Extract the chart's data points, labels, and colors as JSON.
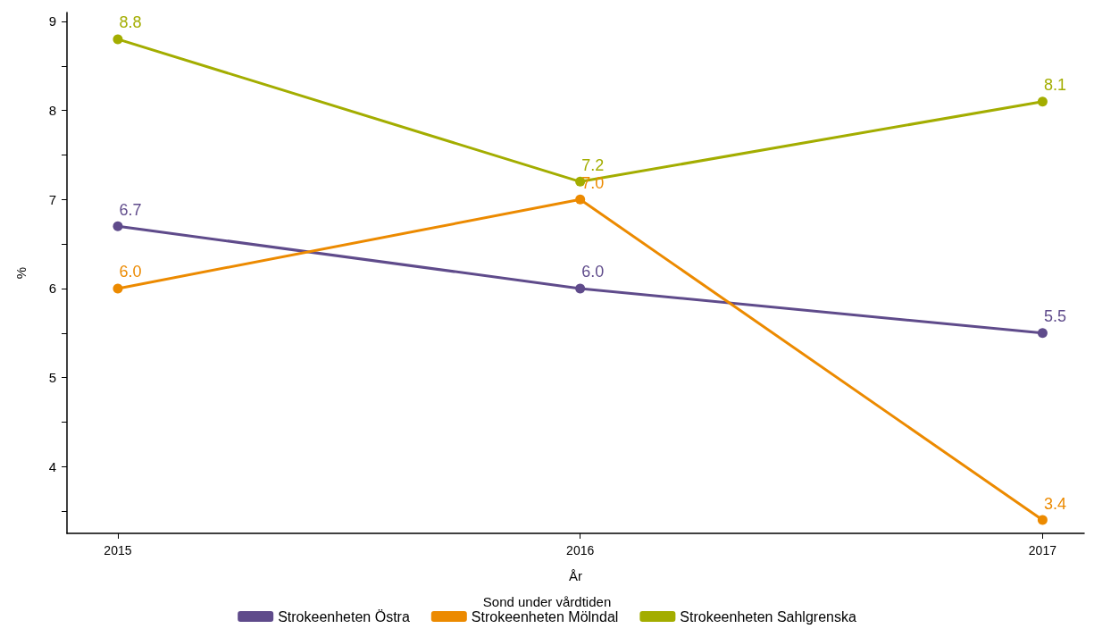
{
  "chart_data": {
    "type": "line",
    "xlabel": "År",
    "ylabel": "%",
    "legend_title": "Sond under vårdtiden",
    "x": [
      2015,
      2016,
      2017
    ],
    "xlim": [
      2014.89,
      2017.09
    ],
    "xticks": [
      2015,
      2016,
      2017
    ],
    "ylim": [
      3.25,
      9.1
    ],
    "yticks": [
      {
        "value": 3.5,
        "label": null
      },
      4,
      {
        "value": 4.5,
        "label": null
      },
      5,
      {
        "value": 5.5,
        "label": null
      },
      6,
      {
        "value": 6.5,
        "label": null
      },
      7,
      {
        "value": 7.5,
        "label": null
      },
      8,
      {
        "value": 8.5,
        "label": null
      },
      9
    ],
    "grid": false,
    "legend": "bottom",
    "marker": "circle",
    "line_style": "solid",
    "series": [
      {
        "name": "Strokeenheten Östra",
        "color": "#5f4b8b",
        "values": [
          6.7,
          6.0,
          5.5
        ],
        "value_labels": [
          "6.7",
          "6.0",
          "5.5"
        ]
      },
      {
        "name": "Strokeenheten Mölndal",
        "color": "#ec8a00",
        "values": [
          6.0,
          7.0,
          3.4
        ],
        "value_labels": [
          "6.0",
          "7.0",
          "3.4"
        ]
      },
      {
        "name": "Strokeenheten Sahlgrenska",
        "color": "#a3ad00",
        "values": [
          8.8,
          7.2,
          8.1
        ],
        "value_labels": [
          "8.8",
          "7.2",
          "8.1"
        ]
      }
    ]
  }
}
